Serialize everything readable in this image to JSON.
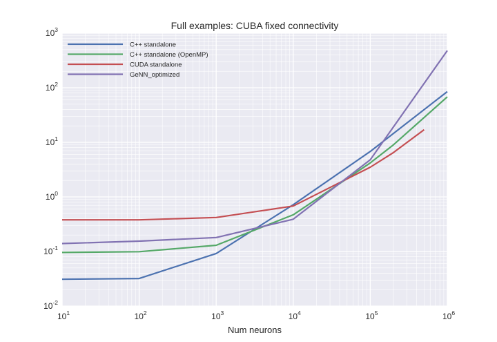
{
  "chart_data": {
    "type": "line",
    "title": "Full examples: CUBA fixed connectivity",
    "xlabel": "Num neurons",
    "ylabel": "",
    "xscale": "log",
    "yscale": "log",
    "xlim": [
      10,
      1000000
    ],
    "ylim": [
      0.01,
      1000
    ],
    "x_tick_labels": [
      {
        "base": "10",
        "exp": "1"
      },
      {
        "base": "10",
        "exp": "2"
      },
      {
        "base": "10",
        "exp": "3"
      },
      {
        "base": "10",
        "exp": "4"
      },
      {
        "base": "10",
        "exp": "5"
      },
      {
        "base": "10",
        "exp": "6"
      }
    ],
    "y_tick_labels": [
      {
        "base": "10",
        "exp": "-2"
      },
      {
        "base": "10",
        "exp": "-1"
      },
      {
        "base": "10",
        "exp": "0"
      },
      {
        "base": "10",
        "exp": "1"
      },
      {
        "base": "10",
        "exp": "2"
      },
      {
        "base": "10",
        "exp": "3"
      }
    ],
    "grid": true,
    "legend_position": "top-left",
    "series": [
      {
        "name": "C++ standalone",
        "color": "#4c72b0",
        "x": [
          10,
          100,
          1000,
          10000,
          100000,
          1000000
        ],
        "y": [
          0.031,
          0.032,
          0.092,
          0.72,
          6.8,
          85
        ]
      },
      {
        "name": "C++ standalone (OpenMP)",
        "color": "#55a868",
        "x": [
          10,
          100,
          1000,
          10000,
          100000,
          200000,
          1000000
        ],
        "y": [
          0.096,
          0.099,
          0.13,
          0.47,
          4.2,
          9.0,
          68
        ]
      },
      {
        "name": "CUDA standalone",
        "color": "#c44e52",
        "x": [
          10,
          100,
          1000,
          10000,
          100000,
          200000,
          500000
        ],
        "y": [
          0.38,
          0.38,
          0.42,
          0.68,
          3.5,
          6.5,
          17
        ]
      },
      {
        "name": "GeNN_optimized",
        "color": "#8172b2",
        "x": [
          10,
          100,
          1000,
          10000,
          100000,
          1000000
        ],
        "y": [
          0.14,
          0.155,
          0.18,
          0.39,
          4.8,
          480
        ]
      }
    ]
  }
}
